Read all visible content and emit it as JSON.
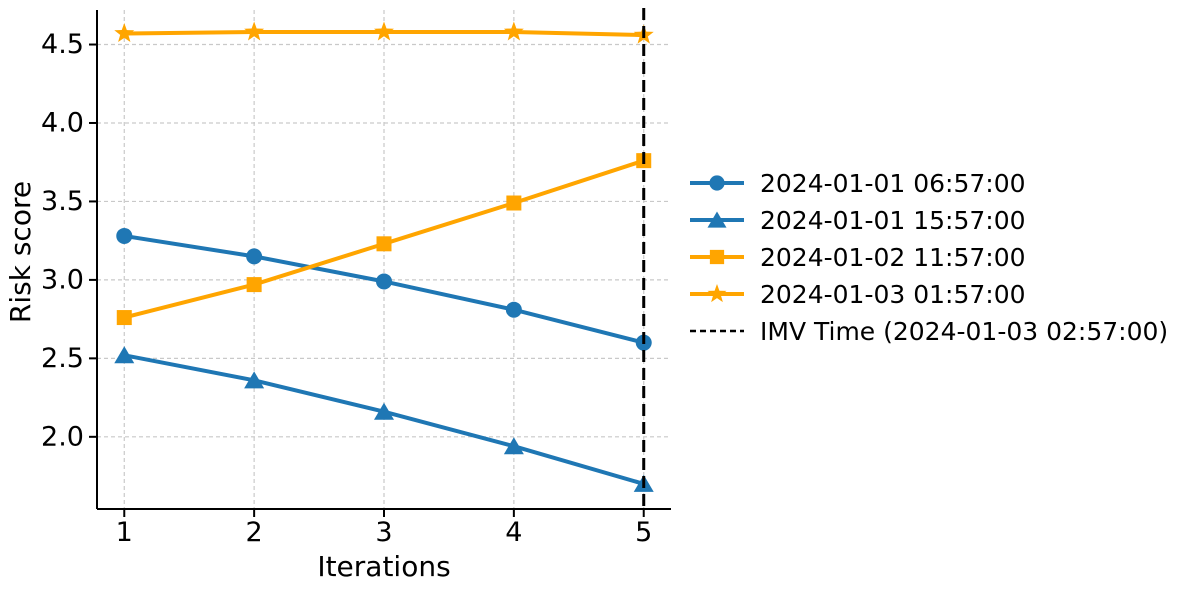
{
  "chart_data": {
    "type": "line",
    "title": "",
    "xlabel": "Iterations",
    "ylabel": "Risk score",
    "x": [
      1,
      2,
      3,
      4,
      5
    ],
    "xticks": [
      "1",
      "2",
      "3",
      "4",
      "5"
    ],
    "yticks": [
      "2.0",
      "2.5",
      "3.0",
      "3.5",
      "4.0",
      "4.5"
    ],
    "xlim": [
      0.79,
      5.21
    ],
    "ylim": [
      1.54,
      4.72
    ],
    "grid": true,
    "grid_style": "dashed",
    "legend_position": "right-outside",
    "series": [
      {
        "name": "2024-01-01 06:57:00",
        "color": "#1f77b4",
        "marker": "circle",
        "values": [
          3.28,
          3.15,
          2.99,
          2.81,
          2.6
        ]
      },
      {
        "name": "2024-01-01 15:57:00",
        "color": "#1f77b4",
        "marker": "triangle",
        "values": [
          2.52,
          2.36,
          2.16,
          1.94,
          1.7
        ]
      },
      {
        "name": "2024-01-02 11:57:00",
        "color": "#ffa500",
        "marker": "square",
        "values": [
          2.76,
          2.97,
          3.23,
          3.49,
          3.76
        ]
      },
      {
        "name": "2024-01-03 01:57:00",
        "color": "#ffa500",
        "marker": "star",
        "values": [
          4.57,
          4.58,
          4.58,
          4.58,
          4.56
        ]
      }
    ],
    "vline": {
      "x": 5,
      "label": "IMV Time (2024-01-03 02:57:00)",
      "color": "#000000",
      "style": "dashed"
    },
    "colors": {
      "axis": "#000000",
      "grid": "#c9c9c9",
      "background": "#ffffff"
    }
  }
}
